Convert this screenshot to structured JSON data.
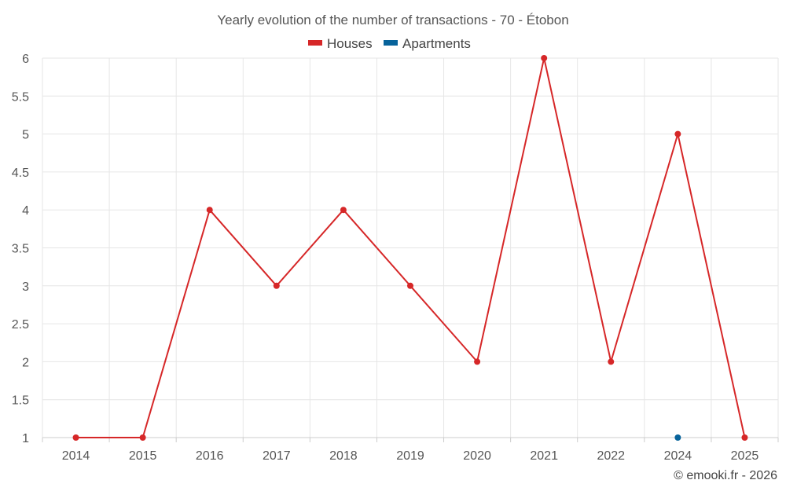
{
  "chart_data": {
    "type": "line",
    "title": "Yearly evolution of the number of transactions - 70 - Étobon",
    "categories": [
      "2014",
      "2015",
      "2016",
      "2017",
      "2018",
      "2019",
      "2020",
      "2021",
      "2022",
      "2024",
      "2025"
    ],
    "series": [
      {
        "name": "Houses",
        "color": "#d62728",
        "values": [
          1,
          1,
          4,
          3,
          4,
          3,
          2,
          6,
          2,
          5,
          1
        ]
      },
      {
        "name": "Apartments",
        "color": "#07639b",
        "values": [
          null,
          null,
          null,
          null,
          null,
          null,
          null,
          null,
          null,
          1,
          null
        ]
      }
    ],
    "ylim": [
      1,
      6
    ],
    "yticks": [
      "1",
      "1.5",
      "2",
      "2.5",
      "3",
      "3.5",
      "4",
      "4.5",
      "5",
      "5.5",
      "6"
    ],
    "xlabel": "",
    "ylabel": "",
    "grid": true,
    "legend_position": "top-center"
  },
  "credit": "© emooki.fr - 2026"
}
